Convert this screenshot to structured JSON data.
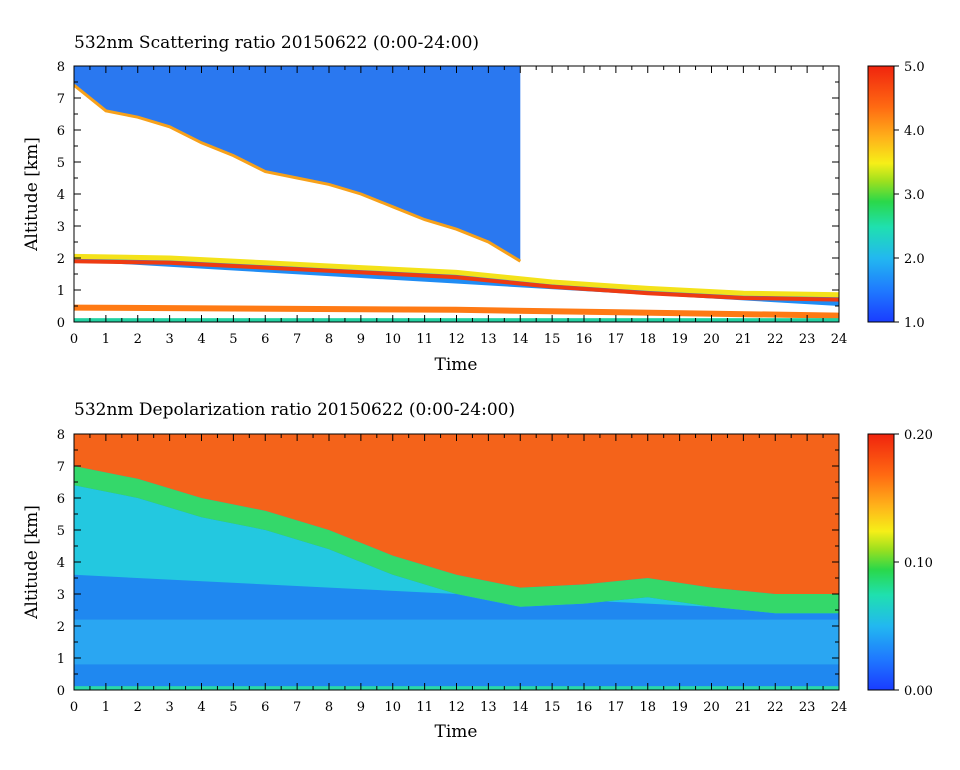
{
  "chart_data": [
    {
      "type": "heatmap",
      "title": "532nm Scattering ratio  20150622 (0:00-24:00)",
      "xlabel": "Time",
      "ylabel": "Altitude [km]",
      "xlim": [
        0,
        24
      ],
      "ylim": [
        0,
        8
      ],
      "x_ticks": [
        "0",
        "1",
        "2",
        "3",
        "4",
        "5",
        "6",
        "7",
        "8",
        "9",
        "10",
        "11",
        "12",
        "13",
        "14",
        "15",
        "16",
        "17",
        "18",
        "19",
        "20",
        "21",
        "22",
        "23",
        "24"
      ],
      "y_ticks": [
        "0",
        "1",
        "2",
        "3",
        "4",
        "5",
        "6",
        "7",
        "8"
      ],
      "colorbar": {
        "range": [
          1.0,
          5.0
        ],
        "ticks": [
          "1.0",
          "2.0",
          "3.0",
          "4.0",
          "5.0"
        ]
      },
      "features": {
        "cloud_base_km": [
          [
            0,
            7.4
          ],
          [
            1,
            6.6
          ],
          [
            2,
            6.4
          ],
          [
            3,
            6.1
          ],
          [
            4,
            5.6
          ],
          [
            5,
            5.2
          ],
          [
            6,
            4.7
          ],
          [
            7,
            4.5
          ],
          [
            8,
            4.3
          ],
          [
            9,
            4.0
          ],
          [
            10,
            3.6
          ],
          [
            11,
            3.2
          ],
          [
            12,
            2.9
          ],
          [
            13,
            2.5
          ],
          [
            14,
            1.9
          ]
        ],
        "dense_layer_top_km": [
          [
            0,
            2.05
          ],
          [
            3,
            2.0
          ],
          [
            6,
            1.85
          ],
          [
            9,
            1.7
          ],
          [
            12,
            1.55
          ],
          [
            15,
            1.25
          ],
          [
            18,
            1.05
          ],
          [
            21,
            0.9
          ],
          [
            24,
            0.85
          ]
        ],
        "surface_layer_km": [
          [
            0,
            0.45
          ],
          [
            12,
            0.38
          ],
          [
            24,
            0.2
          ]
        ]
      }
    },
    {
      "type": "heatmap",
      "title": "532nm Depolarization ratio  20150622 (0:00-24:00)",
      "xlabel": "Time",
      "ylabel": "Altitude [km]",
      "xlim": [
        0,
        24
      ],
      "ylim": [
        0,
        8
      ],
      "x_ticks": [
        "0",
        "1",
        "2",
        "3",
        "4",
        "5",
        "6",
        "7",
        "8",
        "9",
        "10",
        "11",
        "12",
        "13",
        "14",
        "15",
        "16",
        "17",
        "18",
        "19",
        "20",
        "21",
        "22",
        "23",
        "24"
      ],
      "y_ticks": [
        "0",
        "1",
        "2",
        "3",
        "4",
        "5",
        "6",
        "7",
        "8"
      ],
      "colorbar": {
        "range": [
          0.0,
          0.2
        ],
        "ticks": [
          "0.00",
          "0.10",
          "0.20"
        ]
      },
      "features": {
        "high_depol_base_km": [
          [
            0,
            7.0
          ],
          [
            2,
            6.6
          ],
          [
            4,
            6.0
          ],
          [
            6,
            5.6
          ],
          [
            8,
            5.0
          ],
          [
            10,
            4.2
          ],
          [
            12,
            3.6
          ],
          [
            14,
            3.2
          ],
          [
            16,
            3.3
          ],
          [
            18,
            3.5
          ],
          [
            20,
            3.2
          ],
          [
            22,
            3.0
          ],
          [
            24,
            3.0
          ]
        ]
      }
    }
  ]
}
